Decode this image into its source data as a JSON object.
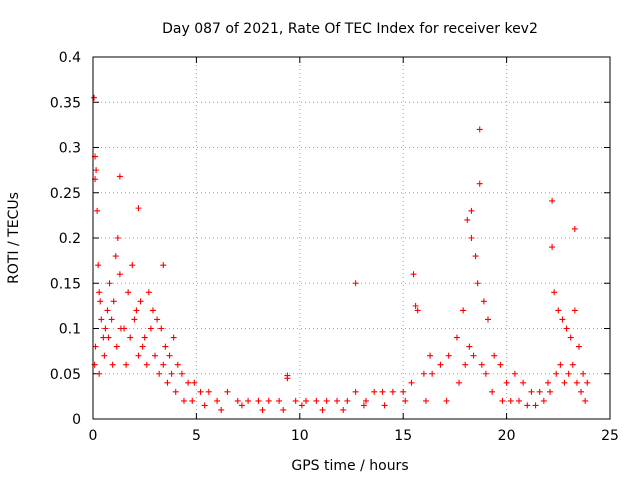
{
  "chart_data": {
    "type": "scatter",
    "title": "Day 087 of 2021, Rate Of TEC Index for receiver kev2",
    "xlabel": "GPS time / hours",
    "ylabel": "ROTI / TECUs",
    "xlim": [
      0,
      25
    ],
    "ylim": [
      0,
      0.4
    ],
    "grid": true,
    "marker": "+",
    "color": "#ff0000",
    "x_ticks": [
      0,
      5,
      10,
      15,
      20,
      25
    ],
    "x_tick_labels": [
      "0",
      "5",
      "10",
      "15",
      "20",
      "25"
    ],
    "y_ticks": [
      0,
      0.05,
      0.1,
      0.15,
      0.2,
      0.25,
      0.3,
      0.35,
      0.4
    ],
    "y_tick_labels": [
      "0",
      "0.05",
      "0.1",
      "0.15",
      "0.2",
      "0.25",
      "0.3",
      "0.35",
      "0.4"
    ],
    "series": [
      {
        "name": "ROTI",
        "x": [
          0.05,
          0.1,
          0.15,
          0.2,
          0.25,
          0.3,
          0.35,
          0.4,
          0.5,
          0.6,
          0.7,
          0.8,
          0.9,
          1.0,
          1.1,
          1.2,
          1.3,
          1.5,
          1.7,
          1.9,
          2.1,
          2.3,
          2.5,
          2.7,
          2.9,
          3.1,
          3.3,
          3.5,
          3.7,
          3.9,
          4.1,
          4.3,
          4.6,
          4.9,
          5.2,
          5.6,
          6.0,
          6.5,
          7.0,
          7.5,
          8.0,
          8.5,
          9.0,
          9.4,
          9.8,
          10.3,
          10.8,
          11.3,
          11.8,
          12.3,
          12.7,
          13.2,
          13.6,
          14.0,
          14.5,
          15.0,
          15.4,
          15.7,
          16.0,
          16.4,
          16.8,
          17.2,
          17.6,
          17.9,
          18.1,
          18.3,
          18.5,
          18.6,
          18.7,
          18.9,
          19.1,
          19.4,
          19.7,
          20.0,
          20.4,
          20.8,
          21.2,
          21.6,
          22.0,
          22.2,
          22.3,
          22.5,
          22.7,
          22.9,
          23.1,
          23.3,
          23.5,
          23.7,
          23.9,
          0.08,
          0.12,
          0.3,
          0.55,
          0.75,
          0.95,
          1.15,
          1.35,
          1.6,
          1.8,
          2.0,
          2.2,
          2.4,
          2.6,
          2.8,
          3.0,
          3.2,
          3.4,
          3.6,
          3.8,
          4.0,
          4.4,
          4.8,
          5.4,
          6.2,
          7.2,
          8.2,
          9.2,
          10.1,
          11.1,
          12.1,
          13.1,
          14.1,
          15.1,
          16.1,
          17.1,
          17.7,
          18.0,
          18.2,
          18.4,
          18.8,
          19.0,
          19.3,
          19.8,
          20.2,
          20.6,
          21.0,
          21.4,
          21.8,
          22.1,
          22.4,
          22.6,
          22.8,
          23.0,
          23.2,
          23.4,
          23.6,
          23.8,
          0.1,
          1.3,
          2.2,
          3.4,
          12.7,
          15.5,
          18.7,
          22.2,
          23.3,
          9.4,
          15.6,
          16.3,
          18.3
        ],
        "y": [
          0.355,
          0.29,
          0.275,
          0.23,
          0.17,
          0.14,
          0.13,
          0.11,
          0.09,
          0.1,
          0.12,
          0.15,
          0.11,
          0.13,
          0.18,
          0.2,
          0.16,
          0.1,
          0.14,
          0.17,
          0.12,
          0.13,
          0.09,
          0.14,
          0.12,
          0.11,
          0.1,
          0.08,
          0.07,
          0.09,
          0.06,
          0.05,
          0.04,
          0.04,
          0.03,
          0.03,
          0.02,
          0.03,
          0.02,
          0.02,
          0.02,
          0.02,
          0.02,
          0.048,
          0.02,
          0.02,
          0.02,
          0.02,
          0.02,
          0.02,
          0.03,
          0.02,
          0.03,
          0.03,
          0.03,
          0.03,
          0.04,
          0.12,
          0.05,
          0.05,
          0.06,
          0.07,
          0.09,
          0.12,
          0.22,
          0.2,
          0.18,
          0.15,
          0.26,
          0.13,
          0.11,
          0.07,
          0.06,
          0.04,
          0.05,
          0.04,
          0.03,
          0.03,
          0.04,
          0.19,
          0.14,
          0.12,
          0.11,
          0.1,
          0.09,
          0.12,
          0.08,
          0.05,
          0.04,
          0.06,
          0.08,
          0.05,
          0.07,
          0.09,
          0.06,
          0.08,
          0.1,
          0.06,
          0.09,
          0.11,
          0.07,
          0.08,
          0.06,
          0.1,
          0.07,
          0.05,
          0.06,
          0.04,
          0.05,
          0.03,
          0.02,
          0.02,
          0.015,
          0.01,
          0.015,
          0.01,
          0.01,
          0.015,
          0.01,
          0.01,
          0.015,
          0.015,
          0.02,
          0.02,
          0.02,
          0.04,
          0.06,
          0.08,
          0.07,
          0.06,
          0.05,
          0.03,
          0.02,
          0.02,
          0.02,
          0.015,
          0.015,
          0.02,
          0.03,
          0.05,
          0.06,
          0.04,
          0.05,
          0.06,
          0.04,
          0.03,
          0.02,
          0.265,
          0.268,
          0.233,
          0.17,
          0.15,
          0.16,
          0.32,
          0.241,
          0.21,
          0.045,
          0.125,
          0.07,
          0.23
        ]
      }
    ]
  }
}
